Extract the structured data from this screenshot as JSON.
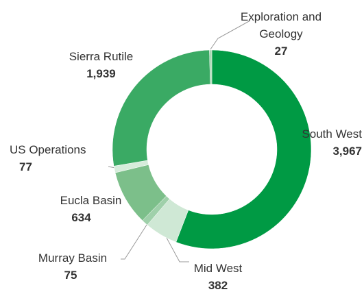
{
  "chart_data": {
    "type": "donut",
    "categories": [
      "South West",
      "Mid West",
      "Murray Basin",
      "Eucla Basin",
      "US Operations",
      "Sierra Rutile",
      "Exploration and Geology"
    ],
    "values": [
      3967,
      382,
      75,
      634,
      77,
      1939,
      27
    ],
    "value_labels": [
      "3,967",
      "382",
      "75",
      "634",
      "77",
      "1,939",
      "27"
    ],
    "colors": [
      "#009a44",
      "#cfe8d5",
      "#9fd0aa",
      "#7cbf8a",
      "#d6ecdb",
      "#3aaa64",
      "#a8d8b4"
    ]
  }
}
